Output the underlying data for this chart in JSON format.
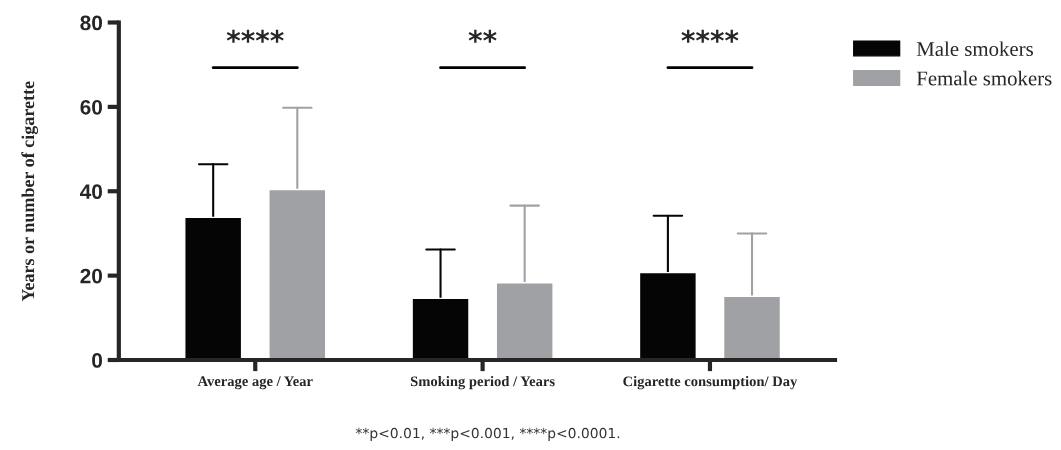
{
  "chart_data": {
    "type": "bar",
    "ylabel": "Years or number of cigarette",
    "categories": [
      "Average age / Year",
      "Smoking period / Years",
      "Cigarette consumption/ Day"
    ],
    "series": [
      {
        "name": "Male smokers",
        "color": "#050505",
        "values": [
          33.8,
          14.6,
          20.7
        ],
        "errors": [
          [
            33.8,
            46.4
          ],
          [
            14.6,
            26.2
          ],
          [
            20.7,
            34.2
          ]
        ]
      },
      {
        "name": "Female smokers",
        "color": "#a0a1a4",
        "values": [
          40.4,
          18.3,
          15.1
        ],
        "errors": [
          [
            40.4,
            59.8
          ],
          [
            18.3,
            36.6
          ],
          [
            15.1,
            30.0
          ]
        ]
      }
    ],
    "ylim": [
      0,
      80
    ],
    "yticks": [
      0,
      20,
      40,
      60,
      80
    ],
    "grid": false,
    "legend": "top right",
    "annotations": [
      "****",
      "**",
      "****",
      "**p<0.01, ***p<0.001, ****p<0.0001."
    ]
  }
}
